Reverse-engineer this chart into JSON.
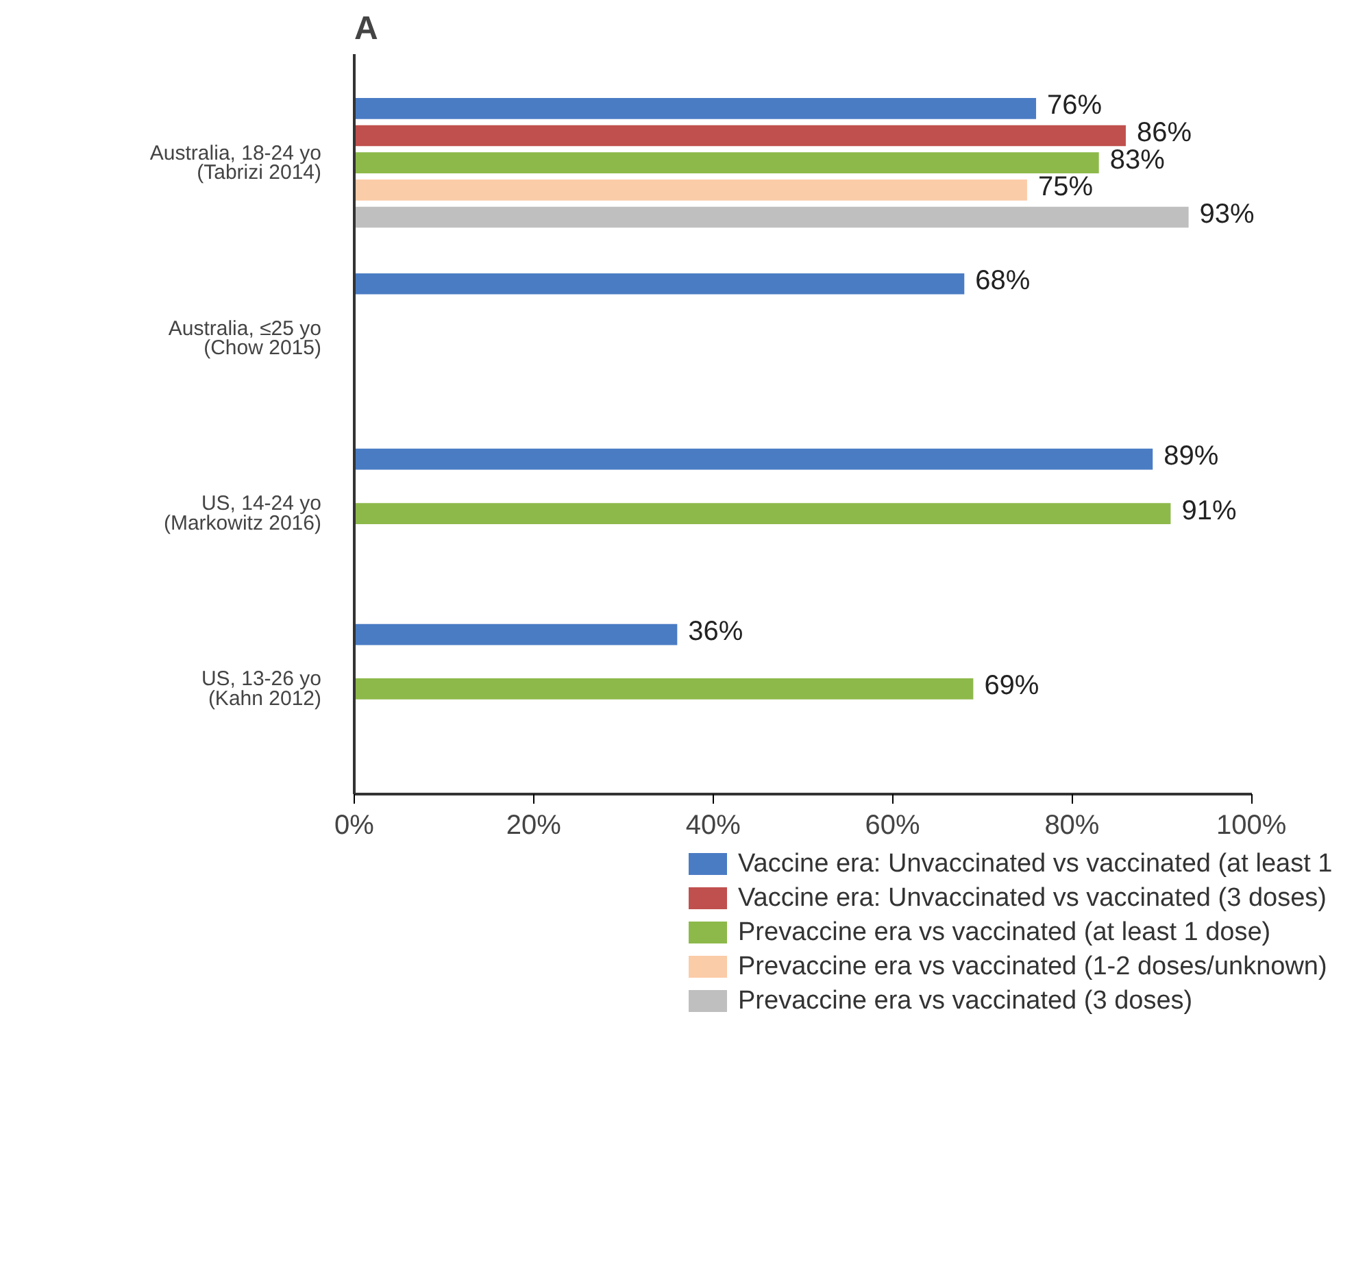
{
  "chart_data": {
    "type": "bar",
    "orientation": "horizontal",
    "categories": [
      "Australia, 18-24 yo\n(Tabrizi 2014)",
      "Australia, ≤25 yo\n(Chow 2015)",
      "US, 14-24 yo\n(Markowitz 2016)",
      "US, 13-26 yo\n(Kahn 2012)"
    ],
    "series": [
      {
        "name": "Vaccine era: Unvaccinated vs vaccinated (at least 1",
        "color": "#4a7cc4",
        "values": [
          76,
          68,
          89,
          36
        ],
        "value_labels": [
          "76%",
          "68%",
          "89%",
          "36%"
        ]
      },
      {
        "name": "Vaccine era: Unvaccinated vs vaccinated (3 doses)",
        "color": "#c0504d",
        "values": [
          86,
          null,
          null,
          null
        ],
        "value_labels": [
          "86%",
          null,
          null,
          null
        ]
      },
      {
        "name": "Prevaccine era vs vaccinated (at least 1 dose)",
        "color": "#8db94a",
        "values": [
          83,
          null,
          91,
          69
        ],
        "value_labels": [
          "83%",
          null,
          "91%",
          "69%"
        ]
      },
      {
        "name": "Prevaccine era vs vaccinated (1-2 doses/unknown)",
        "color": "#fbcca8",
        "values": [
          75,
          null,
          null,
          null
        ],
        "value_labels": [
          "75%",
          null,
          null,
          null
        ]
      },
      {
        "name": "Prevaccine era vs vaccinated (3 doses)",
        "color": "#bfbfbf",
        "values": [
          93,
          null,
          null,
          null
        ],
        "value_labels": [
          "93%",
          null,
          null,
          null
        ]
      }
    ],
    "xlim": [
      0,
      100
    ],
    "xticks": [
      {
        "value": 0,
        "label": "0%"
      },
      {
        "value": 20,
        "label": "20%"
      },
      {
        "value": 40,
        "label": "40%"
      },
      {
        "value": 60,
        "label": "60%"
      },
      {
        "value": 80,
        "label": "80%"
      },
      {
        "value": 100,
        "label": "100%"
      }
    ],
    "grid": false,
    "legend": "bottom",
    "annotations": [
      "A"
    ]
  }
}
